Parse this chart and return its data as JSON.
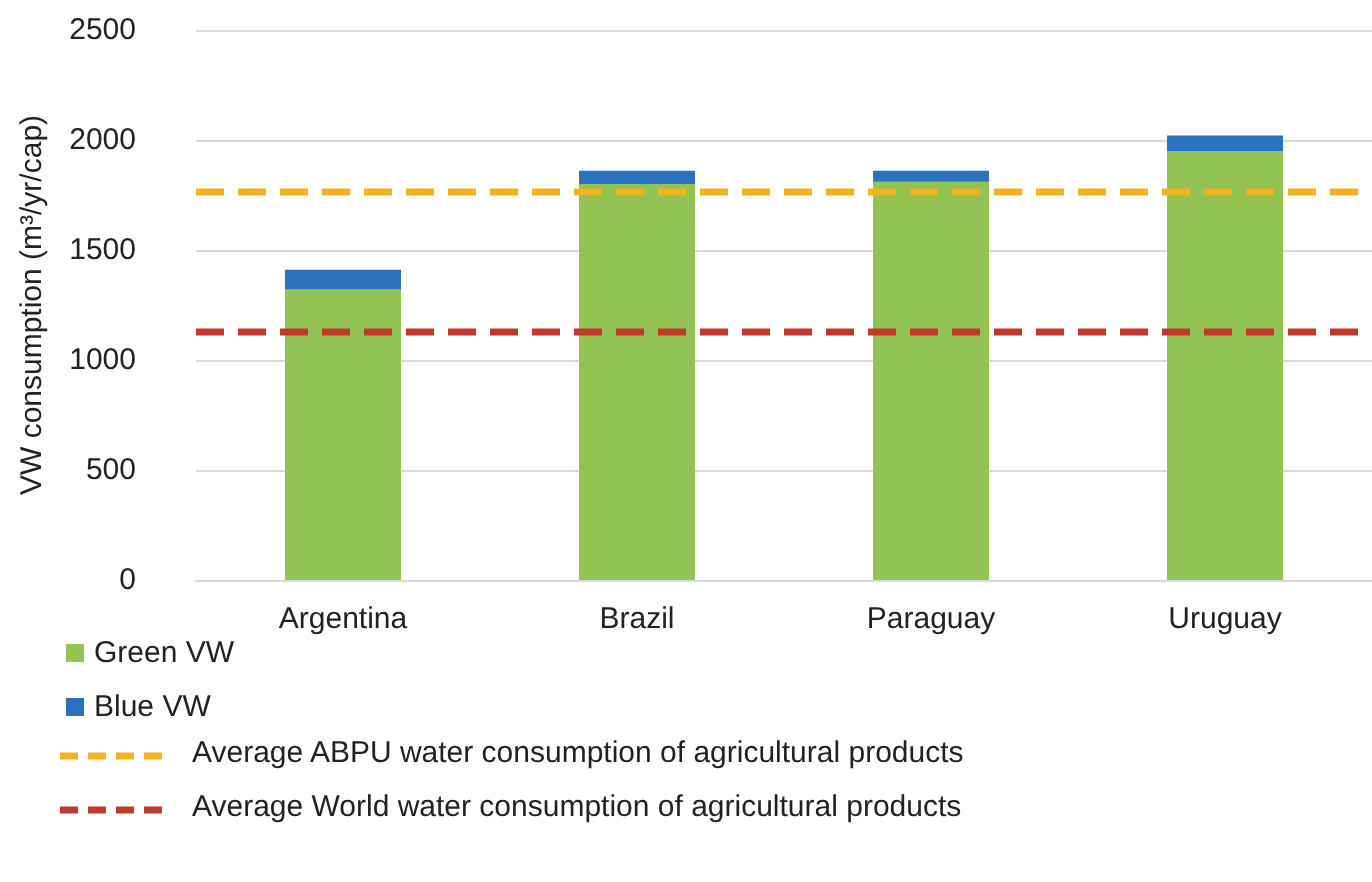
{
  "chart_data": {
    "type": "bar",
    "stacked": true,
    "ylabel": "VW consumption (m³/yr/cap)",
    "categories": [
      "Argentina",
      "Brazil",
      "Paraguay",
      "Uruguay"
    ],
    "series": [
      {
        "name": "Green VW",
        "color": "#92c353",
        "values": [
          1320,
          1800,
          1810,
          1950
        ]
      },
      {
        "name": "Blue VW",
        "color": "#2a72c0",
        "values": [
          90,
          60,
          50,
          70
        ]
      }
    ],
    "ylim": [
      0,
      2500
    ],
    "yticks": [
      0,
      500,
      1000,
      1500,
      2000,
      2500
    ],
    "grid": "y",
    "legend": "bottom left",
    "ref_lines": [
      {
        "axis": "y",
        "value": 1770,
        "label": "Average ABPU water consumption of agricultural products",
        "color": "#f5b21f",
        "line_style": "dashed"
      },
      {
        "axis": "y",
        "value": 1130,
        "label": "Average World water consumption of agricultural products",
        "color": "#c0392b",
        "line_style": "dashed"
      }
    ]
  }
}
